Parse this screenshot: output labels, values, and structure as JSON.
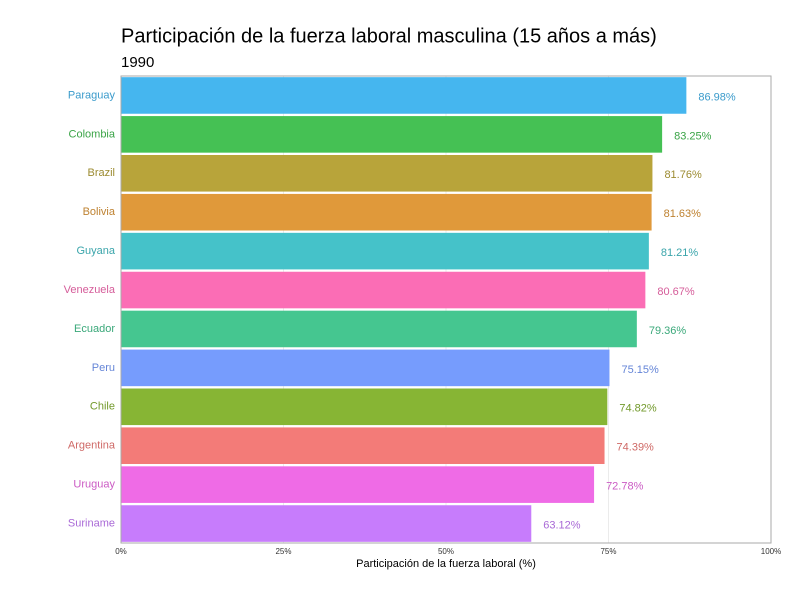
{
  "chart_data": {
    "type": "bar",
    "orientation": "horizontal",
    "title": "Participación de la fuerza laboral masculina (15 años a más)",
    "subtitle": "1990",
    "xlabel": "Participación de la fuerza laboral (%)",
    "categories": [
      "Paraguay",
      "Colombia",
      "Brazil",
      "Bolivia",
      "Guyana",
      "Venezuela",
      "Ecuador",
      "Peru",
      "Chile",
      "Argentina",
      "Uruguay",
      "Suriname"
    ],
    "values": [
      86.98,
      83.25,
      81.76,
      81.63,
      81.21,
      80.67,
      79.36,
      75.15,
      74.82,
      74.39,
      72.78,
      63.12
    ],
    "value_labels": [
      "86.98%",
      "83.25%",
      "81.76%",
      "81.63%",
      "81.21%",
      "80.67%",
      "79.36%",
      "75.15%",
      "74.82%",
      "74.39%",
      "72.78%",
      "63.12%"
    ],
    "colors": [
      "#45b6ef",
      "#45c154",
      "#b8a43a",
      "#e0993a",
      "#45c2c9",
      "#fb6db5",
      "#45c690",
      "#769cfd",
      "#87b534",
      "#f37b78",
      "#ef6be6",
      "#c77cfc"
    ],
    "xlim": [
      0,
      100
    ],
    "xticks": [
      {
        "value": 0,
        "label": "0%"
      },
      {
        "value": 25,
        "label": "25%"
      },
      {
        "value": 50,
        "label": "50%"
      },
      {
        "value": 75,
        "label": "75%"
      },
      {
        "value": 100,
        "label": "100%"
      }
    ],
    "grid": true
  }
}
